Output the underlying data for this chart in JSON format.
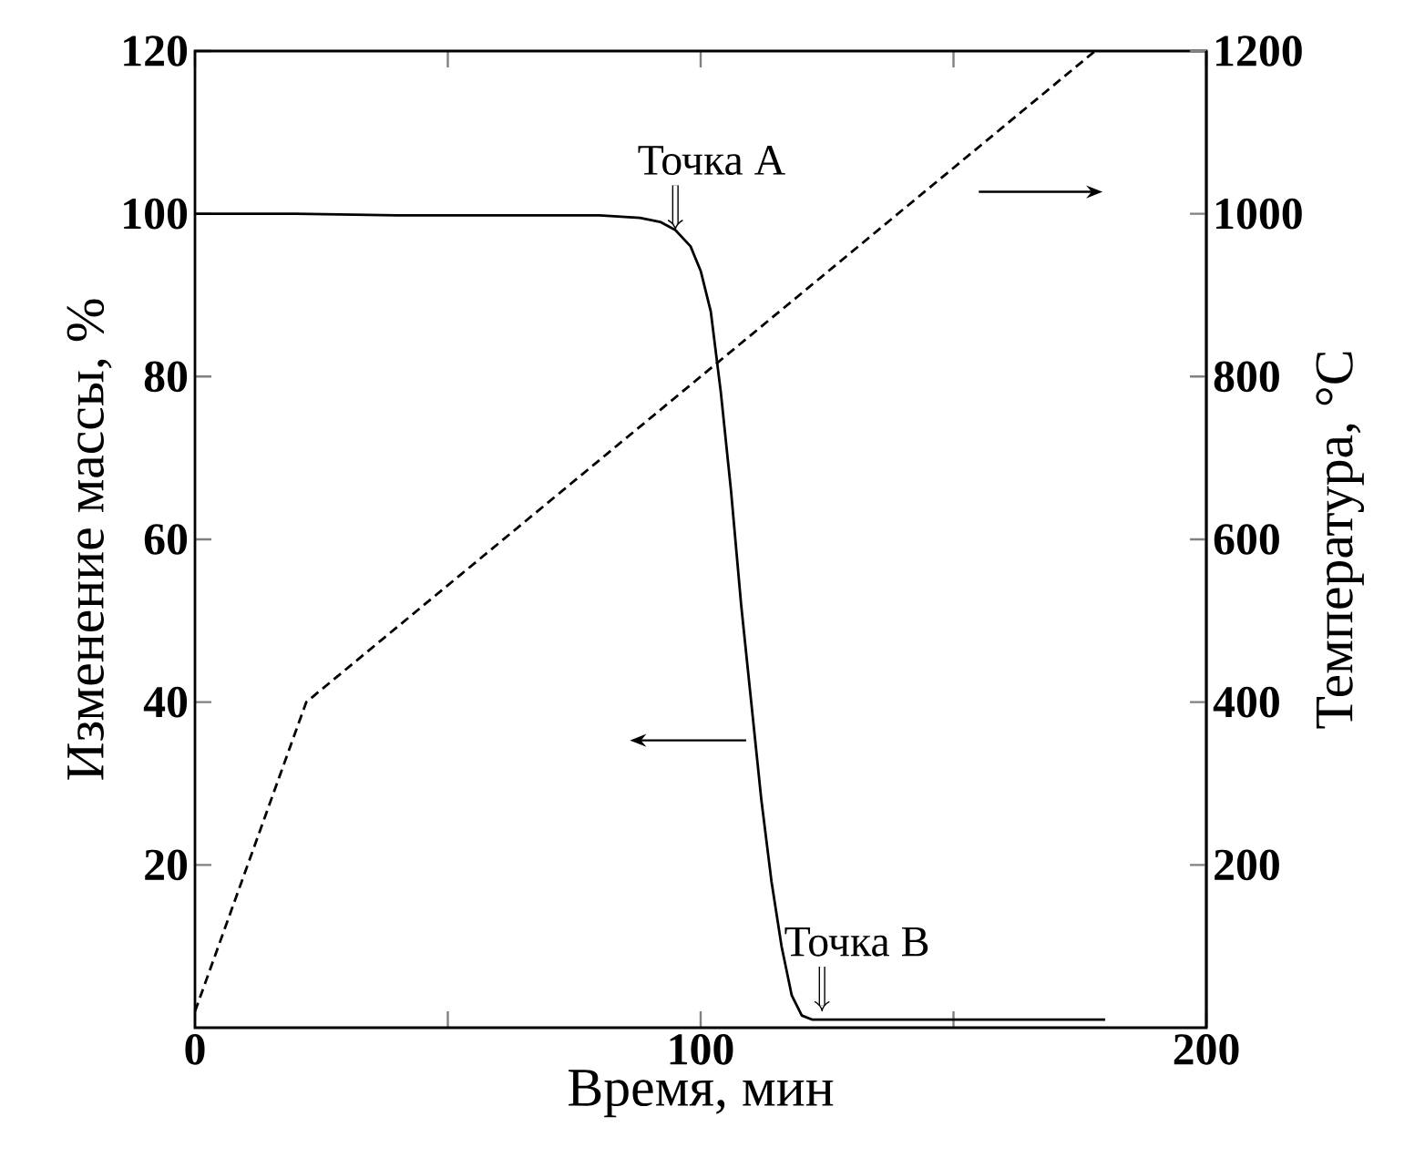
{
  "chart_data": {
    "type": "line",
    "xlabel": "Время, мин",
    "ylabel": "Изменение массы, %",
    "y2label": "Температура, °C",
    "xlim": [
      0,
      200
    ],
    "ylim": [
      0,
      120
    ],
    "y2lim": [
      0,
      1200
    ],
    "xticks": [
      0,
      {
        "value": 50,
        "label": null
      },
      100,
      {
        "value": 150,
        "label": null
      },
      200
    ],
    "yticks": [
      20,
      40,
      60,
      80,
      100,
      120
    ],
    "y2ticks": [
      200,
      400,
      600,
      800,
      1000,
      1200
    ],
    "series": [
      {
        "color": "#000000",
        "line_style": "solid",
        "x": [
          0,
          20,
          40,
          60,
          80,
          88,
          92,
          95,
          98,
          100,
          102,
          104,
          106,
          108,
          110,
          112,
          114,
          116,
          118,
          120,
          122,
          125,
          140,
          160,
          180
        ],
        "values": [
          100,
          100,
          99.8,
          99.8,
          99.8,
          99.5,
          99,
          98,
          96,
          93,
          88,
          78,
          66,
          52,
          40,
          28,
          18,
          10,
          4,
          1.5,
          1,
          1,
          1,
          1,
          1
        ]
      },
      {
        "color": "#000000",
        "line_style": "dashed",
        "axis": "y2",
        "x": [
          0,
          22,
          178
        ],
        "values": [
          20,
          400,
          1200
        ]
      }
    ],
    "annotations": [
      {
        "text": "Точка A",
        "x": 95,
        "y": 98
      },
      {
        "text": "Точка B",
        "x": 124,
        "y": 2
      }
    ]
  }
}
